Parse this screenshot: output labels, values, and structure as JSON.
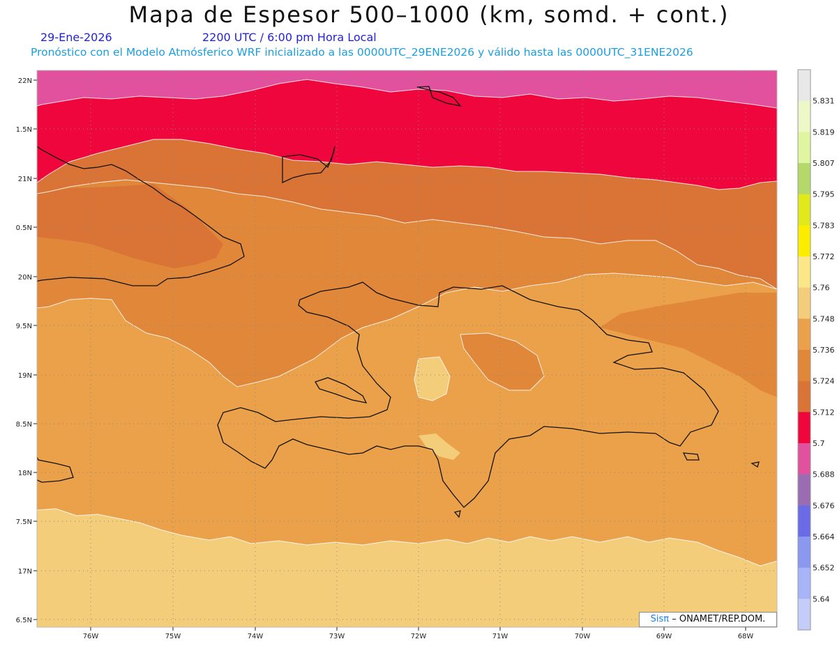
{
  "title": "Mapa de Espesor 500–1000 (km, somd. + cont.)",
  "date": "29-Ene-2026",
  "time_label": "2200 UTC / 6:00 pm Hora Local",
  "model_info": "Pronóstico con el Modelo Atmósferico WRF inicializado a las 0000UTC_29ENE2026 y válido hasta las  0000UTC_31ENE2026",
  "lat_labels": [
    "22N",
    "1.5N",
    "21N",
    "0.5N",
    "20N",
    "9.5N",
    "19N",
    "8.5N",
    "18N",
    "7.5N",
    "17N",
    "6.5N"
  ],
  "lon_labels": [
    "76W",
    "75W",
    "74W",
    "73W",
    "72W",
    "71W",
    "70W",
    "69W",
    "68W"
  ],
  "colorbar": {
    "labels": [
      "5.831",
      "5.819",
      "5.807",
      "5.795",
      "5.783",
      "5.772",
      "5.76",
      "5.748",
      "5.736",
      "5.724",
      "5.712",
      "5.7",
      "5.688",
      "5.676",
      "5.664",
      "5.652",
      "5.64"
    ],
    "colors": [
      "#e8e8e8",
      "#eef7c8",
      "#e0f5a0",
      "#b4d96a",
      "#e1e91c",
      "#fbec00",
      "#fbe788",
      "#f3cd7a",
      "#eaa14a",
      "#e0873a",
      "#d97436",
      "#ee063c",
      "#e1519d",
      "#9a6db3",
      "#6b6be8",
      "#8a98f0",
      "#a7b4f7",
      "#c4ccf8"
    ]
  },
  "credit_brand": "Sisπ",
  "credit_text": "– ONAMET/REP.DOM."
}
